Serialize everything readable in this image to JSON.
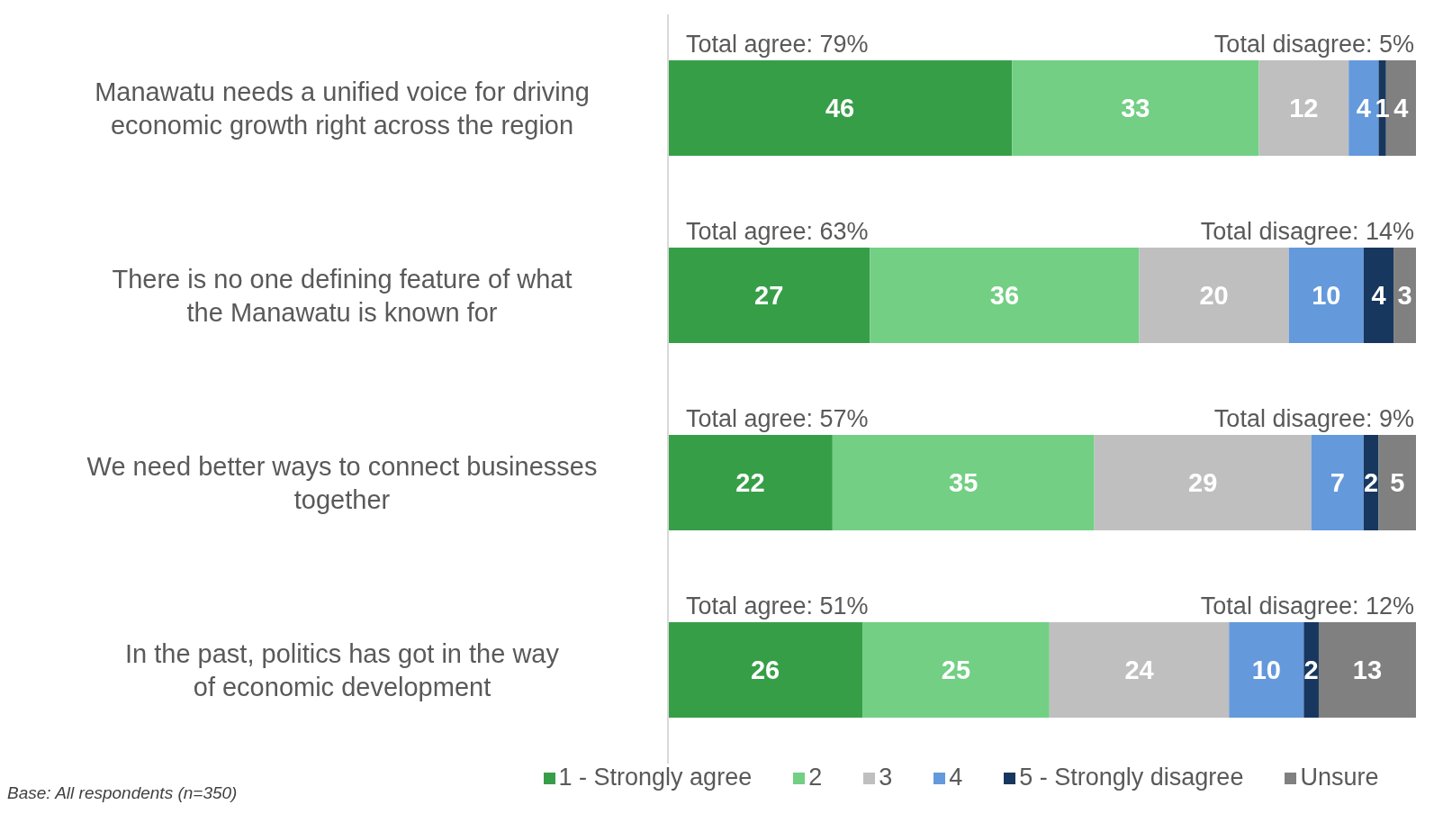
{
  "chart_data": {
    "type": "bar",
    "orientation": "horizontal",
    "stacked": true,
    "data_labels": true,
    "grid": false,
    "legend": "bottom",
    "tick_labels": "y",
    "xlim": [
      0,
      100
    ],
    "categories": [
      "Manawatu needs a unified voice for driving economic growth right across the region",
      "There is no one defining feature of what the Manawatu is known for",
      "We need better ways to connect businesses together",
      "In the past, politics has got in the way of economic development"
    ],
    "series": [
      {
        "name": "1 - Strongly agree",
        "color": "#379e48",
        "values": [
          46,
          27,
          22,
          26
        ]
      },
      {
        "name": "2",
        "color": "#72cf84",
        "values": [
          33,
          36,
          35,
          25
        ]
      },
      {
        "name": "3",
        "color": "#bfbfbf",
        "values": [
          12,
          20,
          29,
          24
        ]
      },
      {
        "name": "4",
        "color": "#6499dc",
        "values": [
          4,
          10,
          7,
          10
        ]
      },
      {
        "name": "5 - Strongly disagree",
        "color": "#17375e",
        "values": [
          1,
          4,
          2,
          2
        ]
      },
      {
        "name": "Unsure",
        "color": "#808080",
        "values": [
          4,
          3,
          5,
          13
        ]
      }
    ],
    "annotations": [
      "Total agree: 79%",
      "Total disagree: 5%",
      "Total agree: 63%",
      "Total disagree: 14%",
      "Total agree: 57%",
      "Total disagree: 9%",
      "Total agree: 51%",
      "Total disagree: 12%",
      "Base: All respondents (n=350)"
    ]
  }
}
